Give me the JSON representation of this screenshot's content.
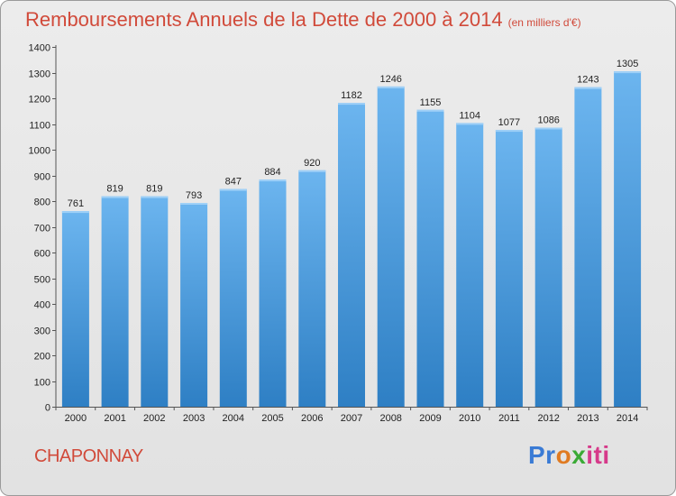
{
  "header": {
    "title": "Remboursements Annuels de la Dette de 2000 à 2014",
    "unit": "(en milliers d'€)"
  },
  "footer": {
    "commune": "CHAPONNAY",
    "logo": "Proxiti"
  },
  "colors": {
    "bar_top": "#6cb5ef",
    "bar_bottom": "#2e7fc4",
    "title": "#d14a3a"
  },
  "chart_data": {
    "type": "bar",
    "title": "Remboursements Annuels de la Dette de 2000 à 2014 (en milliers d'€)",
    "xlabel": "",
    "ylabel": "",
    "ylim": [
      0,
      1400
    ],
    "yticks": [
      0,
      100,
      200,
      300,
      400,
      500,
      600,
      700,
      800,
      900,
      1000,
      1100,
      1200,
      1300,
      1400
    ],
    "categories": [
      "2000",
      "2001",
      "2002",
      "2003",
      "2004",
      "2005",
      "2006",
      "2007",
      "2008",
      "2009",
      "2010",
      "2011",
      "2012",
      "2013",
      "2014"
    ],
    "values": [
      761,
      819,
      819,
      793,
      847,
      884,
      920,
      1182,
      1246,
      1155,
      1104,
      1077,
      1086,
      1243,
      1305
    ],
    "grid": false,
    "legend": "none"
  }
}
